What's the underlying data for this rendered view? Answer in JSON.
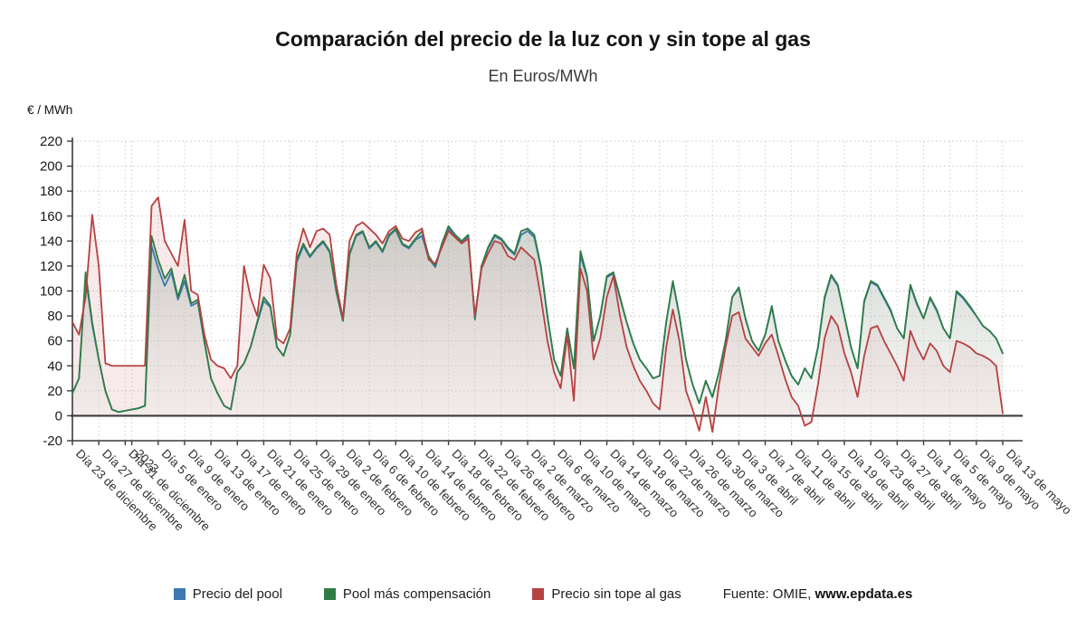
{
  "header": {
    "title": "Comparación del precio de la luz con y sin tope al gas",
    "subtitle": "En Euros/MWh",
    "unit_label": "€ / MWh"
  },
  "legend": {
    "items": [
      {
        "label": "Precio del pool",
        "color": "#3d78b2"
      },
      {
        "label": "Pool más compensación",
        "color": "#2f7d45"
      },
      {
        "label": "Precio sin tope al gas",
        "color": "#b64141"
      }
    ],
    "source_prefix": "Fuente: OMIE, ",
    "source_link": "www.epdata.es"
  },
  "chart_data": {
    "type": "line",
    "title": "Comparación del precio de la luz con y sin tope al gas",
    "subtitle": "En Euros/MWh",
    "ylabel": "€ / MWh",
    "ylim": [
      -20,
      220
    ],
    "ytick_step": 20,
    "grid": true,
    "legend_position": "bottom",
    "x_unit": "day",
    "tick_indices": [
      0,
      4,
      8,
      9,
      13,
      17,
      21,
      25,
      29,
      33,
      37,
      41,
      45,
      49,
      53,
      57,
      61,
      65,
      69,
      73,
      77,
      81,
      85,
      89,
      93,
      97,
      101,
      105,
      109,
      113,
      117,
      121,
      125,
      129,
      133,
      137,
      141
    ],
    "tick_labels": [
      "Día 23 de diciembre",
      "Día 27 de diciembre",
      "Día 31 de diciembre",
      "2023",
      "Día 5 de enero",
      "Día 9 de enero",
      "Día 13 de enero",
      "Día 17 de enero",
      "Día 21 de enero",
      "Día 25 de enero",
      "Día 29 de enero",
      "Día 2 de febrero",
      "Día 6 de febrero",
      "Día 10 de febrero",
      "Día 14 de febrero",
      "Día 18 de febrero",
      "Día 22 de febrero",
      "Día 26 de febrero",
      "Día 2 de marzo",
      "Día 6 de marzo",
      "Día 10 de marzo",
      "Día 14 de marzo",
      "Día 18 de marzo",
      "Día 22 de marzo",
      "Día 26 de marzo",
      "Día 30 de marzo",
      "Día 3 de abril",
      "Día 7 de abril",
      "Día 11 de abril",
      "Día 15 de abril",
      "Día 19 de abril",
      "Día 23 de abril",
      "Día 27 de abril",
      "Día 1 de mayo",
      "Día 5 de mayo",
      "Día 9 de mayo",
      "Día 13 de mayo"
    ],
    "series": [
      {
        "name": "Precio del pool",
        "color": "#3d78b2",
        "values": [
          18,
          30,
          112,
          73,
          45,
          20,
          5,
          3,
          4,
          5,
          6,
          8,
          136,
          118,
          104,
          115,
          93,
          108,
          88,
          91,
          59,
          30,
          18,
          8,
          5,
          35,
          42,
          55,
          74,
          92,
          87,
          55,
          48,
          65,
          123,
          136,
          127,
          134,
          139,
          131,
          99,
          76,
          129,
          144,
          147,
          134,
          139,
          131,
          144,
          149,
          137,
          134,
          141,
          144,
          126,
          119,
          137,
          150,
          144,
          139,
          144,
          77,
          119,
          134,
          144,
          141,
          134,
          129,
          145,
          148,
          143,
          119,
          79,
          45,
          32,
          70,
          38,
          128,
          111,
          60,
          80,
          111,
          114,
          94,
          75,
          58,
          45,
          38,
          30,
          32,
          75,
          107,
          80,
          45,
          25,
          10,
          28,
          15,
          35,
          60,
          95,
          102,
          78,
          60,
          52,
          65,
          87,
          60,
          45,
          32,
          25,
          38,
          30,
          55,
          94,
          112,
          104,
          80,
          55,
          38,
          91,
          107,
          104,
          94,
          84,
          70,
          62,
          104,
          89,
          78,
          94,
          84,
          70,
          62,
          99,
          94,
          87,
          80,
          72,
          68,
          62,
          50
        ]
      },
      {
        "name": "Pool más compensación",
        "color": "#2f7d45",
        "values": [
          18,
          30,
          115,
          75,
          45,
          20,
          5,
          3,
          4,
          5,
          6,
          8,
          144,
          125,
          110,
          118,
          95,
          113,
          90,
          93,
          60,
          30,
          18,
          8,
          5,
          35,
          42,
          55,
          75,
          95,
          88,
          55,
          48,
          65,
          125,
          138,
          128,
          135,
          140,
          132,
          100,
          76,
          130,
          145,
          148,
          135,
          140,
          132,
          145,
          150,
          138,
          135,
          142,
          148,
          128,
          120,
          138,
          152,
          145,
          140,
          145,
          78,
          120,
          135,
          145,
          142,
          135,
          130,
          148,
          150,
          145,
          120,
          80,
          45,
          32,
          70,
          38,
          132,
          112,
          60,
          80,
          112,
          115,
          95,
          75,
          58,
          45,
          38,
          30,
          32,
          75,
          108,
          80,
          45,
          25,
          10,
          28,
          15,
          35,
          60,
          95,
          103,
          78,
          60,
          52,
          65,
          88,
          60,
          45,
          32,
          25,
          38,
          30,
          55,
          95,
          113,
          105,
          80,
          55,
          38,
          92,
          108,
          105,
          95,
          85,
          70,
          62,
          105,
          90,
          78,
          95,
          85,
          70,
          62,
          100,
          95,
          88,
          80,
          72,
          68,
          62,
          50
        ]
      },
      {
        "name": "Precio sin tope al gas",
        "color": "#b64141",
        "values": [
          75,
          65,
          95,
          161,
          120,
          42,
          40,
          40,
          40,
          40,
          40,
          40,
          168,
          175,
          140,
          130,
          120,
          157,
          100,
          97,
          65,
          45,
          40,
          38,
          30,
          40,
          120,
          95,
          80,
          121,
          110,
          62,
          58,
          70,
          130,
          150,
          135,
          148,
          150,
          145,
          105,
          78,
          140,
          152,
          155,
          150,
          145,
          138,
          148,
          152,
          142,
          140,
          147,
          150,
          125,
          122,
          135,
          148,
          143,
          138,
          142,
          80,
          118,
          130,
          140,
          138,
          128,
          125,
          135,
          130,
          125,
          95,
          60,
          35,
          22,
          65,
          12,
          118,
          100,
          45,
          62,
          95,
          112,
          80,
          55,
          40,
          28,
          20,
          10,
          5,
          55,
          85,
          60,
          20,
          5,
          -12,
          15,
          -13,
          25,
          55,
          80,
          83,
          62,
          55,
          48,
          58,
          65,
          48,
          30,
          15,
          8,
          -8,
          -5,
          25,
          62,
          80,
          72,
          50,
          35,
          15,
          48,
          70,
          72,
          60,
          50,
          40,
          28,
          68,
          55,
          45,
          58,
          52,
          40,
          35,
          60,
          58,
          55,
          50,
          48,
          45,
          40,
          2
        ]
      }
    ],
    "source": "Fuente: OMIE, www.epdata.es"
  }
}
